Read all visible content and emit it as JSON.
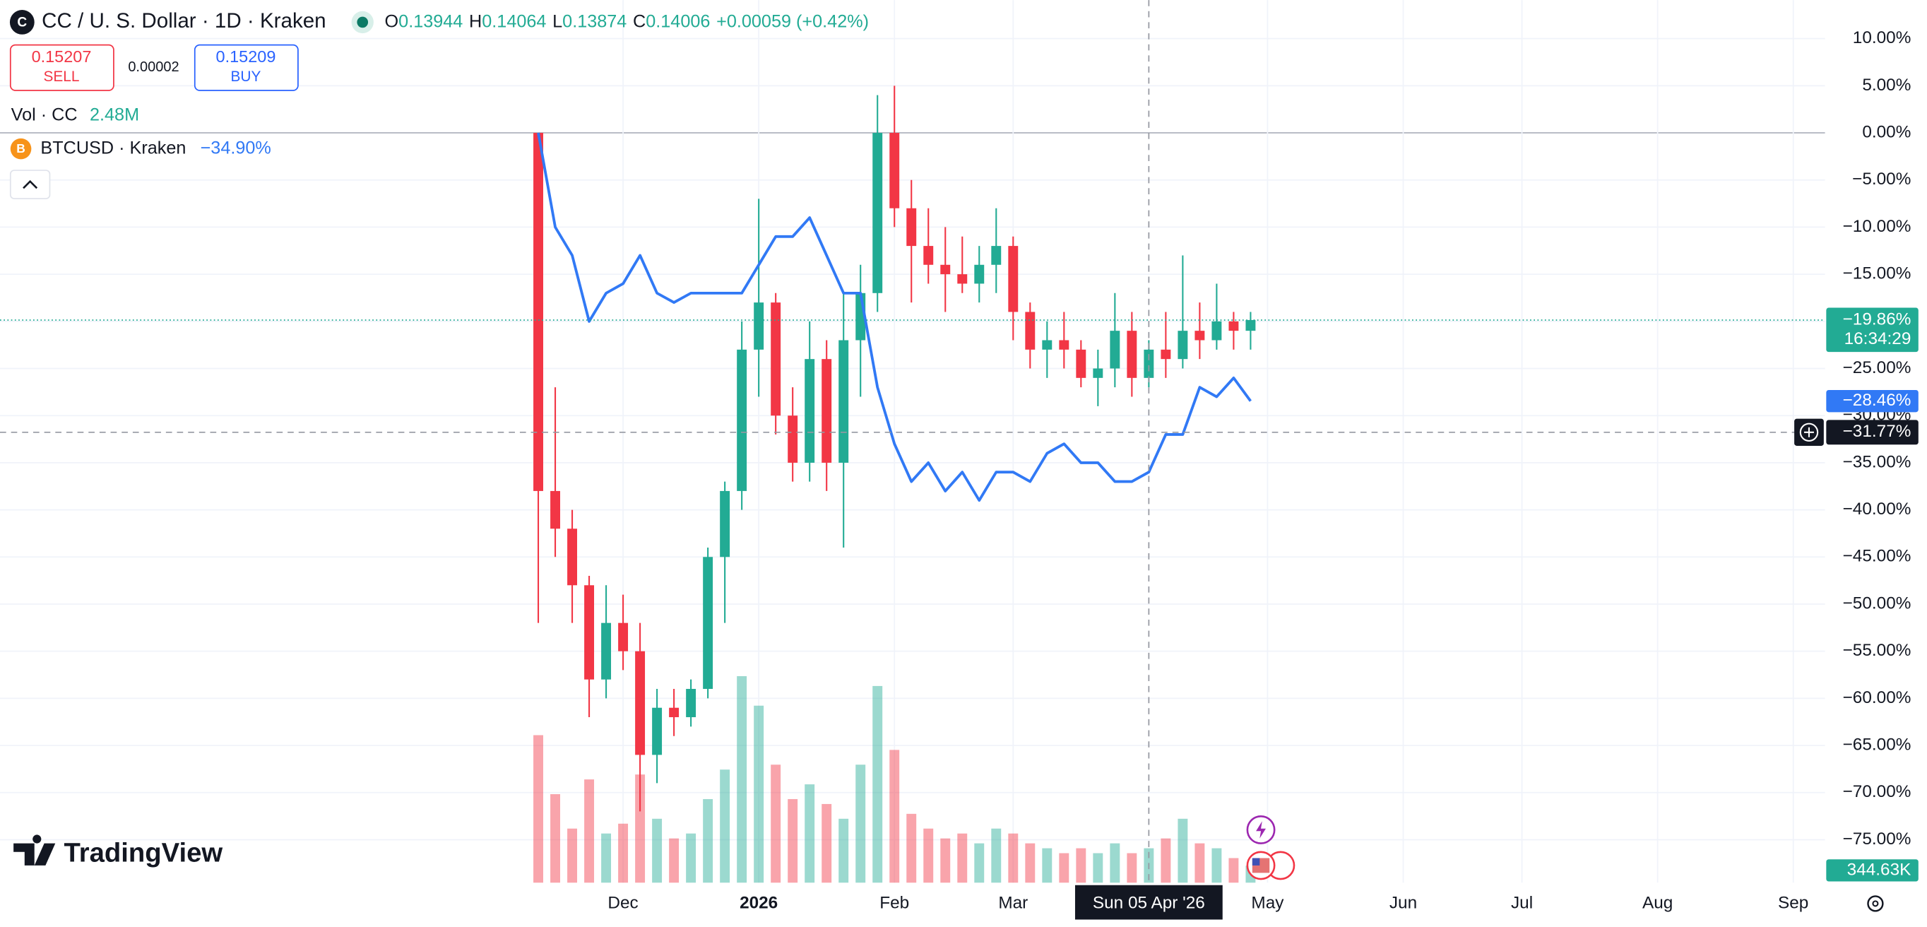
{
  "chart_data": {
    "type": "candlestick",
    "title": "CC / U. S. Dollar · 1D · Kraken",
    "ohlc_header": {
      "o_label": "O",
      "open": "0.13944",
      "h_label": "H",
      "high": "0.14064",
      "l_label": "L",
      "low": "0.13874",
      "c_label": "C",
      "close": "0.14006",
      "change": "+0.00059 (+0.42%)"
    },
    "quotes": {
      "sell_price": "0.15207",
      "sell_label": "SELL",
      "spread": "0.00002",
      "buy_price": "0.15209",
      "buy_label": "BUY"
    },
    "brand": "TradingView",
    "categories": [
      null,
      null,
      null,
      null,
      null,
      "Dec",
      null,
      null,
      null,
      null,
      null,
      null,
      null,
      "2026",
      null,
      null,
      null,
      null,
      null,
      null,
      null,
      "Feb",
      null,
      null,
      null,
      null,
      null,
      null,
      "Mar",
      null,
      null,
      null,
      null,
      null,
      null,
      null,
      "Sun 05 Apr '26",
      null,
      null,
      null,
      null,
      null,
      null,
      "May",
      null,
      null,
      null,
      null,
      null,
      null,
      null,
      "Jun",
      null,
      null,
      null,
      null,
      null,
      null,
      "Jul",
      null,
      null,
      null,
      null,
      null,
      null,
      null,
      "Aug",
      null,
      null,
      null,
      null,
      null,
      null,
      null,
      "Sep",
      null,
      null,
      null
    ],
    "candles": {
      "up_color": "#22ab94",
      "down_color": "#f23645",
      "open": [
        0,
        -38,
        -42,
        -48,
        -58,
        -52,
        -55,
        -66,
        -61,
        -62,
        -59,
        -45,
        -38,
        -23,
        -18,
        -30,
        -35,
        -24,
        -35,
        -22,
        -17,
        0,
        -8,
        -12,
        -14,
        -15,
        -16,
        -14,
        -12,
        -19,
        -23,
        -22,
        -23,
        -26,
        -25,
        -21,
        -26,
        -23,
        -24,
        -21,
        -22,
        -20,
        -21,
        null,
        null,
        null,
        null,
        null,
        null,
        null,
        null,
        null,
        null,
        null,
        null,
        null,
        null,
        null,
        null,
        null,
        null,
        null,
        null,
        null,
        null,
        null,
        null,
        null,
        null,
        null,
        null,
        null,
        null,
        null,
        null,
        null,
        null,
        null
      ],
      "high": [
        0,
        -27,
        -40,
        -47,
        -48,
        -49,
        -52,
        -59,
        -59,
        -58,
        -44,
        -37,
        -20,
        -7,
        -17,
        -27,
        -20,
        -22,
        -17,
        -14,
        4,
        5,
        -5,
        -8,
        -10,
        -11,
        -12,
        -8,
        -11,
        -18,
        -20,
        -19,
        -22,
        -23,
        -17,
        -19,
        -22,
        -19,
        -13,
        -18,
        -16,
        -19,
        -19,
        null,
        null,
        null,
        null,
        null,
        null,
        null,
        null,
        null,
        null,
        null,
        null,
        null,
        null,
        null,
        null,
        null,
        null,
        null,
        null,
        null,
        null,
        null,
        null,
        null,
        null,
        null,
        null,
        null,
        null,
        null,
        null,
        null,
        null,
        null
      ],
      "low": [
        -52,
        -45,
        -52,
        -62,
        -60,
        -57,
        -72,
        -69,
        -64,
        -63,
        -60,
        -52,
        -40,
        -28,
        -32,
        -37,
        -37,
        -38,
        -44,
        -28,
        -19,
        -10,
        -18,
        -16,
        -19,
        -17,
        -18,
        -17,
        -22,
        -25,
        -26,
        -25,
        -27,
        -29,
        -27,
        -28,
        -27,
        -26,
        -25,
        -24,
        -23,
        -23,
        -23,
        null,
        null,
        null,
        null,
        null,
        null,
        null,
        null,
        null,
        null,
        null,
        null,
        null,
        null,
        null,
        null,
        null,
        null,
        null,
        null,
        null,
        null,
        null,
        null,
        null,
        null,
        null,
        null,
        null,
        null,
        null,
        null,
        null,
        null,
        null
      ],
      "close": [
        -38,
        -42,
        -48,
        -58,
        -52,
        -55,
        -66,
        -61,
        -62,
        -59,
        -45,
        -38,
        -23,
        -18,
        -30,
        -35,
        -24,
        -35,
        -22,
        -17,
        0,
        -8,
        -12,
        -14,
        -15,
        -16,
        -14,
        -12,
        -19,
        -23,
        -22,
        -23,
        -26,
        -25,
        -21,
        -26,
        -23,
        -24,
        -21,
        -22,
        -20,
        -21,
        -19.86,
        null,
        null,
        null,
        null,
        null,
        null,
        null,
        null,
        null,
        null,
        null,
        null,
        null,
        null,
        null,
        null,
        null,
        null,
        null,
        null,
        null,
        null,
        null,
        null,
        null,
        null,
        null,
        null,
        null,
        null,
        null,
        null,
        null,
        null,
        null
      ]
    },
    "volume": {
      "name": "Vol · CC",
      "header_value": "2.48M",
      "up_color": "#22ab94",
      "down_color": "#f23645",
      "ylim": [
        0,
        6000
      ],
      "values": [
        3000,
        1800,
        1100,
        2100,
        1000,
        1200,
        2200,
        1300,
        900,
        1000,
        1700,
        2300,
        4200,
        3600,
        2400,
        1700,
        2000,
        1600,
        1300,
        2400,
        4000,
        2700,
        1400,
        1100,
        900,
        1000,
        800,
        1100,
        1000,
        800,
        700,
        600,
        700,
        600,
        800,
        600,
        700,
        900,
        1300,
        800,
        700,
        500,
        344.63,
        null,
        null,
        null,
        null,
        null,
        null,
        null,
        null,
        null,
        null,
        null,
        null,
        null,
        null,
        null,
        null,
        null,
        null,
        null,
        null,
        null,
        null,
        null,
        null,
        null,
        null,
        null,
        null,
        null,
        null,
        null,
        null,
        null,
        null,
        null
      ],
      "value_labels": [
        null,
        null,
        null,
        null,
        null,
        null,
        null,
        null,
        null,
        null,
        null,
        null,
        null,
        null,
        null,
        null,
        null,
        null,
        null,
        null,
        null,
        null,
        null,
        null,
        null,
        null,
        null,
        null,
        null,
        null,
        null,
        null,
        null,
        null,
        null,
        null,
        null,
        null,
        null,
        null,
        null,
        null,
        "344.63K",
        null,
        null,
        null,
        null,
        null,
        null,
        null,
        null,
        null,
        null,
        null,
        null,
        null,
        null,
        null,
        null,
        null,
        null,
        null,
        null,
        null,
        null,
        null,
        null,
        null,
        null,
        null,
        null,
        null,
        null,
        null,
        null,
        null,
        null,
        null
      ]
    },
    "series": [
      {
        "name": "BTCUSD · Kraken",
        "change": "−34.90%",
        "color": "#3179f5",
        "values": [
          0,
          -10,
          -13,
          -20,
          -17,
          -16,
          -13,
          -17,
          -18,
          -17,
          -17,
          -17,
          -17,
          -14,
          -11,
          -11,
          -9,
          -13,
          -17,
          -17,
          -27,
          -33,
          -37,
          -35,
          -38,
          -36,
          -39,
          -36,
          -36,
          -37,
          -34,
          -33,
          -35,
          -35,
          -37,
          -37,
          -36,
          -32,
          -32,
          -27,
          -28,
          -26,
          -28.46,
          null,
          null,
          null,
          null,
          null,
          null,
          null,
          null,
          null,
          null,
          null,
          null,
          null,
          null,
          null,
          null,
          null,
          null,
          null,
          null,
          null,
          null,
          null,
          null,
          null,
          null,
          null,
          null,
          null,
          null,
          null,
          null,
          null,
          null,
          null
        ]
      }
    ],
    "ylim": [
      -79.56,
      14.09
    ],
    "yticks": [
      {
        "value": 10,
        "label": "10.00%"
      },
      {
        "value": 5,
        "label": "5.00%"
      },
      {
        "value": 0,
        "label": "0.00%"
      },
      {
        "value": -5,
        "label": "−5.00%"
      },
      {
        "value": -10,
        "label": "−10.00%"
      },
      {
        "value": -15,
        "label": "−15.00%"
      },
      {
        "value": -20,
        "label": "−20.00%"
      },
      {
        "value": -25,
        "label": "−25.00%"
      },
      {
        "value": -30,
        "label": "−30.00%"
      },
      {
        "value": -35,
        "label": "−35.00%"
      },
      {
        "value": -40,
        "label": "−40.00%"
      },
      {
        "value": -45,
        "label": "−45.00%"
      },
      {
        "value": -50,
        "label": "−50.00%"
      },
      {
        "value": -55,
        "label": "−55.00%"
      },
      {
        "value": -60,
        "label": "−60.00%"
      },
      {
        "value": -65,
        "label": "−65.00%"
      },
      {
        "value": -70,
        "label": "−70.00%"
      },
      {
        "value": -75,
        "label": "−75.00%"
      }
    ],
    "grid": true,
    "price_tag": {
      "value": -19.86,
      "label": "−19.86%",
      "countdown": "16:34:29"
    },
    "compare_tag": {
      "value": -28.46,
      "label": "−28.46%"
    },
    "crosshair": {
      "value": -31.77,
      "label": "−31.77%"
    }
  }
}
